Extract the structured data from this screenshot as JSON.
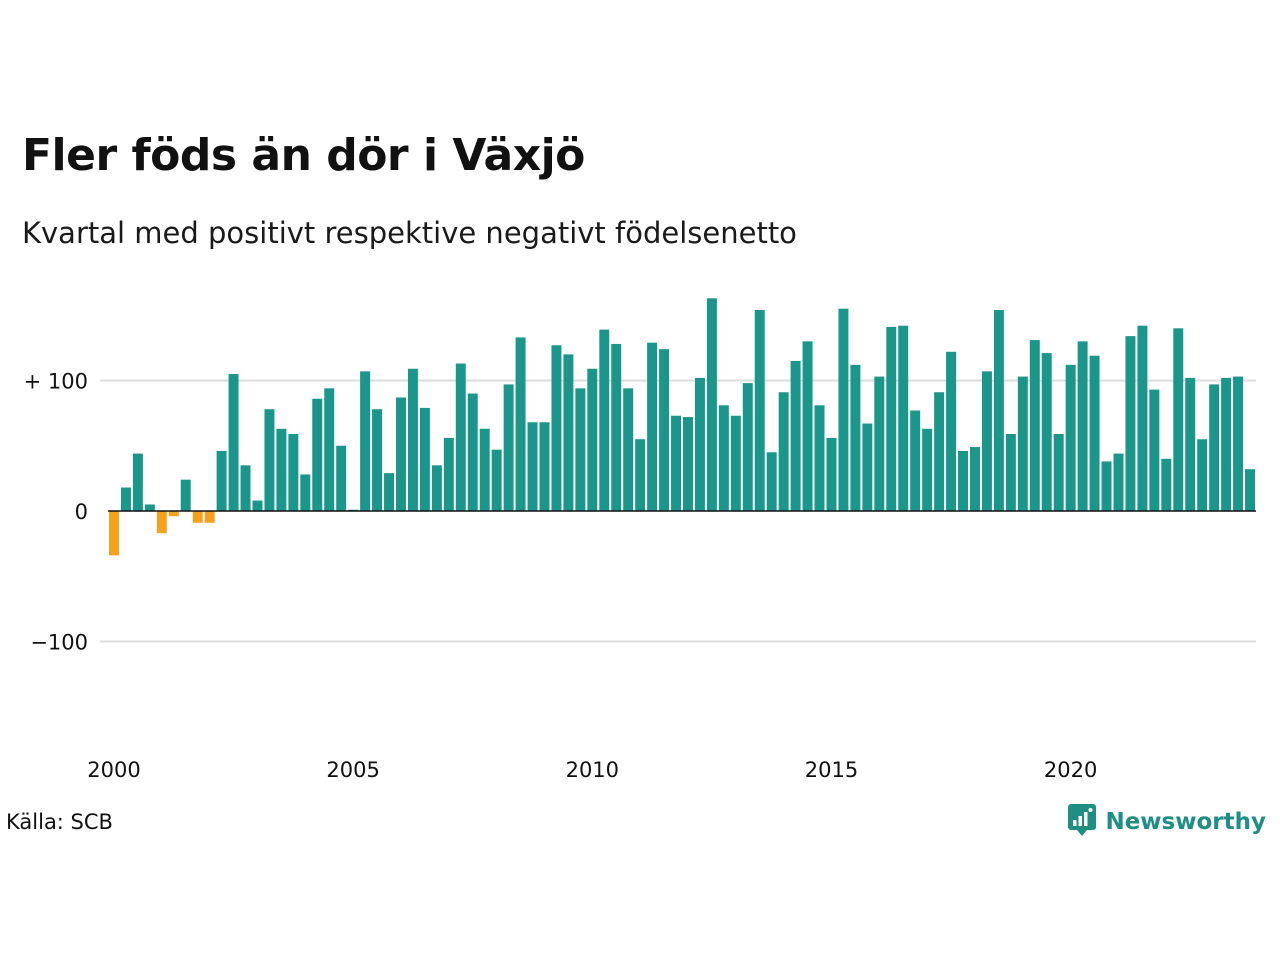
{
  "title": "Fler föds än dör i Växjö",
  "subtitle": "Kvartal med positivt respektive negativt födelsenetto",
  "source": "Källa: SCB",
  "brand": {
    "name": "Newsworthy",
    "logo_icon": "newsworthy-logo-icon"
  },
  "colors": {
    "positive": "#1a968a",
    "negative": "#f4a11e",
    "grid": "#dddddd",
    "axis": "#111111",
    "brand": "#1f8e83"
  },
  "chart_data": {
    "type": "bar",
    "title": "Fler föds än dör i Växjö",
    "subtitle": "Kvartal med positivt respektive negativt födelsenetto",
    "xlabel": "",
    "ylabel": "",
    "ylim": [
      -180,
      165
    ],
    "grid": true,
    "yticks": [
      {
        "value": 100,
        "label": "+ 100"
      },
      {
        "value": 0,
        "label": "0"
      },
      {
        "value": -100,
        "label": "−100"
      }
    ],
    "xticks": [
      "2000",
      "2005",
      "2010",
      "2015",
      "2020"
    ],
    "series": [
      {
        "start": "2000 Q1",
        "frequency": "quarterly",
        "values": [
          -34,
          18,
          44,
          5,
          -17,
          -4,
          24,
          -9,
          -9,
          46,
          105,
          35,
          8,
          78,
          63,
          59,
          28,
          86,
          94,
          50,
          1,
          107,
          78,
          29,
          87,
          109,
          79,
          35,
          56,
          113,
          90,
          63,
          47,
          97,
          133,
          68,
          68,
          127,
          120,
          94,
          109,
          139,
          128,
          94,
          55,
          129,
          124,
          73,
          72,
          102,
          163,
          81,
          73,
          98,
          154,
          45,
          91,
          115,
          130,
          81,
          56,
          155,
          112,
          67,
          103,
          141,
          142,
          77,
          63,
          91,
          122,
          46,
          49,
          107,
          154,
          59,
          103,
          131,
          121,
          59,
          112,
          130,
          119,
          38,
          44,
          134,
          142,
          93,
          40,
          140,
          102,
          55,
          97,
          102,
          103,
          32
        ]
      }
    ]
  }
}
